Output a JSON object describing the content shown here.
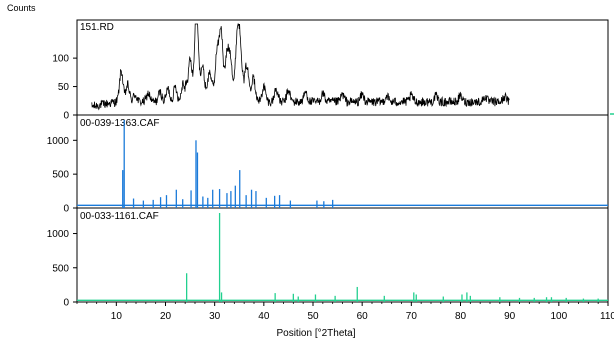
{
  "chart_data": {
    "type": "line",
    "ylabel": "Counts",
    "xlabel": "Position [°2Theta]",
    "xlim": [
      2,
      110
    ],
    "x_ticks": [
      10,
      20,
      30,
      40,
      50,
      60,
      70,
      80,
      90,
      100,
      110
    ],
    "grid": false,
    "panels": [
      {
        "name": "151.RD",
        "plot": "line",
        "color": "#000000",
        "ylim": [
          0,
          160
        ],
        "y_ticks": [
          0,
          50,
          100
        ],
        "x_range": [
          5,
          90
        ],
        "baseline": 15,
        "peaks": [
          {
            "x": 11.0,
            "y": 70
          },
          {
            "x": 12.3,
            "y": 45
          },
          {
            "x": 13.8,
            "y": 28
          },
          {
            "x": 16.5,
            "y": 30
          },
          {
            "x": 18.9,
            "y": 32
          },
          {
            "x": 20.5,
            "y": 38
          },
          {
            "x": 22.0,
            "y": 42
          },
          {
            "x": 23.6,
            "y": 50
          },
          {
            "x": 25.0,
            "y": 72
          },
          {
            "x": 26.3,
            "y": 165
          },
          {
            "x": 27.5,
            "y": 60
          },
          {
            "x": 29.0,
            "y": 50
          },
          {
            "x": 30.5,
            "y": 85
          },
          {
            "x": 31.3,
            "y": 125
          },
          {
            "x": 32.5,
            "y": 80
          },
          {
            "x": 33.2,
            "y": 75
          },
          {
            "x": 34.6,
            "y": 110
          },
          {
            "x": 35.2,
            "y": 95
          },
          {
            "x": 36.5,
            "y": 62
          },
          {
            "x": 38.0,
            "y": 50
          },
          {
            "x": 40.0,
            "y": 42
          },
          {
            "x": 42.5,
            "y": 38
          },
          {
            "x": 45.0,
            "y": 35
          },
          {
            "x": 48.5,
            "y": 32
          },
          {
            "x": 52.0,
            "y": 30
          },
          {
            "x": 56.0,
            "y": 28
          },
          {
            "x": 60.0,
            "y": 28
          },
          {
            "x": 65.0,
            "y": 26
          },
          {
            "x": 70.0,
            "y": 26
          },
          {
            "x": 75.0,
            "y": 25
          },
          {
            "x": 80.0,
            "y": 25
          },
          {
            "x": 85.0,
            "y": 24
          },
          {
            "x": 89.0,
            "y": 24
          }
        ]
      },
      {
        "name": "00-039-1363.CAF",
        "plot": "stick",
        "color": "#1a7ad9",
        "ylim": [
          0,
          1300
        ],
        "y_ticks": [
          0,
          500,
          1000
        ],
        "x_range": [
          2,
          110
        ],
        "baseline": 40,
        "sticks": [
          {
            "x": 11.3,
            "y": 560
          },
          {
            "x": 11.6,
            "y": 1300
          },
          {
            "x": 13.5,
            "y": 140
          },
          {
            "x": 15.5,
            "y": 110
          },
          {
            "x": 17.5,
            "y": 120
          },
          {
            "x": 19.0,
            "y": 160
          },
          {
            "x": 20.2,
            "y": 190
          },
          {
            "x": 22.2,
            "y": 270
          },
          {
            "x": 23.5,
            "y": 130
          },
          {
            "x": 25.2,
            "y": 260
          },
          {
            "x": 26.2,
            "y": 1000
          },
          {
            "x": 26.5,
            "y": 820
          },
          {
            "x": 27.6,
            "y": 170
          },
          {
            "x": 28.6,
            "y": 150
          },
          {
            "x": 29.6,
            "y": 270
          },
          {
            "x": 31.0,
            "y": 280
          },
          {
            "x": 32.5,
            "y": 220
          },
          {
            "x": 33.3,
            "y": 250
          },
          {
            "x": 34.2,
            "y": 330
          },
          {
            "x": 35.1,
            "y": 560
          },
          {
            "x": 36.4,
            "y": 190
          },
          {
            "x": 37.5,
            "y": 270
          },
          {
            "x": 38.4,
            "y": 250
          },
          {
            "x": 40.5,
            "y": 150
          },
          {
            "x": 42.2,
            "y": 180
          },
          {
            "x": 43.2,
            "y": 190
          },
          {
            "x": 45.4,
            "y": 110
          },
          {
            "x": 50.8,
            "y": 110
          },
          {
            "x": 52.2,
            "y": 100
          },
          {
            "x": 54.0,
            "y": 120
          }
        ]
      },
      {
        "name": "00-033-1161.CAF",
        "plot": "stick",
        "color": "#22d08f",
        "ylim": [
          0,
          1300
        ],
        "y_ticks": [
          0,
          500,
          1000
        ],
        "x_range": [
          2,
          110
        ],
        "baseline": 25,
        "sticks": [
          {
            "x": 24.3,
            "y": 420
          },
          {
            "x": 31.0,
            "y": 1300
          },
          {
            "x": 31.4,
            "y": 140
          },
          {
            "x": 42.3,
            "y": 130
          },
          {
            "x": 46.0,
            "y": 120
          },
          {
            "x": 47.0,
            "y": 80
          },
          {
            "x": 50.5,
            "y": 110
          },
          {
            "x": 54.5,
            "y": 90
          },
          {
            "x": 59.0,
            "y": 220
          },
          {
            "x": 64.5,
            "y": 90
          },
          {
            "x": 70.5,
            "y": 140
          },
          {
            "x": 71.0,
            "y": 110
          },
          {
            "x": 76.5,
            "y": 80
          },
          {
            "x": 80.3,
            "y": 110
          },
          {
            "x": 81.3,
            "y": 140
          },
          {
            "x": 82.0,
            "y": 90
          },
          {
            "x": 88.0,
            "y": 70
          },
          {
            "x": 92.0,
            "y": 60
          },
          {
            "x": 95.0,
            "y": 60
          },
          {
            "x": 97.5,
            "y": 70
          },
          {
            "x": 98.5,
            "y": 70
          },
          {
            "x": 101.5,
            "y": 60
          },
          {
            "x": 105.0,
            "y": 50
          },
          {
            "x": 108.0,
            "y": 50
          }
        ]
      }
    ]
  }
}
